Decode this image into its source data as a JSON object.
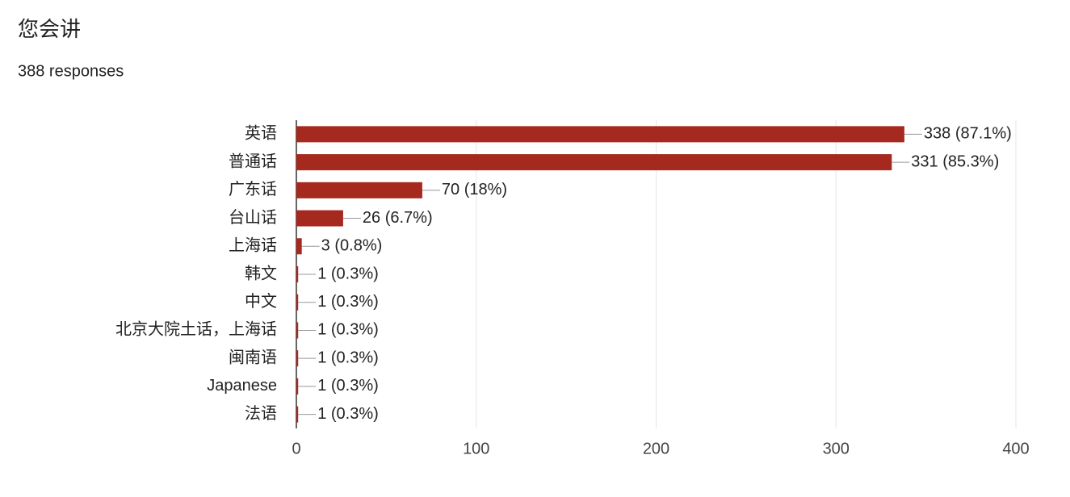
{
  "chart_data": {
    "type": "bar",
    "orientation": "horizontal",
    "title": "您会讲",
    "subtitle": "388 responses",
    "categories": [
      "英语",
      "普通话",
      "广东话",
      "台山话",
      "上海话",
      "韩文",
      "中文",
      "北京大院土话，上海话",
      "闽南语",
      "Japanese",
      "法语"
    ],
    "values": [
      338,
      331,
      70,
      26,
      3,
      1,
      1,
      1,
      1,
      1,
      1
    ],
    "value_labels": [
      "338 (87.1%)",
      "331 (85.3%)",
      "70 (18%)",
      "26 (6.7%)",
      "3 (0.8%)",
      "1 (0.3%)",
      "1 (0.3%)",
      "1 (0.3%)",
      "1 (0.3%)",
      "1 (0.3%)",
      "1 (0.3%)"
    ],
    "color": "#a5291e",
    "xlim": [
      0,
      400
    ],
    "xticks": [
      0,
      100,
      200,
      300,
      400
    ],
    "grid": true
  }
}
